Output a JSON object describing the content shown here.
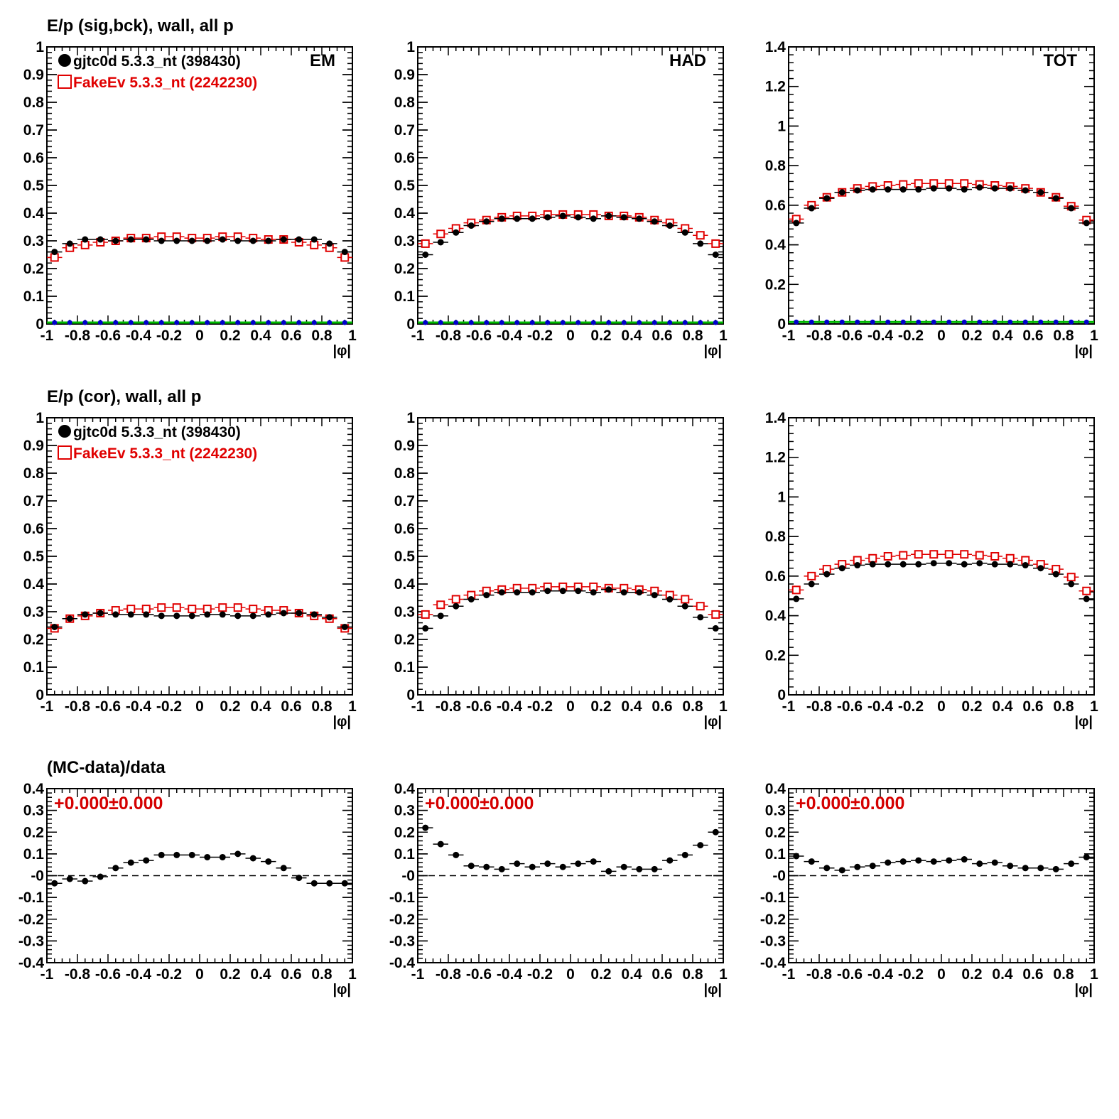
{
  "colors": {
    "data": "#000000",
    "mc": "#e00000",
    "extra_blue": "#0000cc",
    "extra_green": "#00bb00"
  },
  "row_titles": [
    "E/p (sig,bck), wall, all p",
    "E/p (cor), wall, all p",
    "(MC-data)/data"
  ],
  "legend": {
    "data_label": "gjtc0d 5.3.3_nt (398430)",
    "mc_label": "FakeEv 5.3.3_nt (2242230)",
    "data_marker": "filled-circle",
    "mc_marker": "open-square"
  },
  "ratio_text": "+0.000±0.000",
  "chart_data": [
    {
      "type": "scatter",
      "row": 0,
      "col": 0,
      "corner_label": "EM",
      "show_legend": true,
      "xlabel": "|φ|",
      "xlim": [
        -1,
        1
      ],
      "ylim": [
        0,
        1
      ],
      "xticks": [
        -1,
        -0.8,
        -0.6,
        -0.4,
        -0.2,
        0,
        0.2,
        0.4,
        0.6,
        0.8,
        1
      ],
      "yticks": [
        0,
        0.1,
        0.2,
        0.3,
        0.4,
        0.5,
        0.6,
        0.7,
        0.8,
        0.9,
        1
      ],
      "x": [
        -0.95,
        -0.85,
        -0.75,
        -0.65,
        -0.55,
        -0.45,
        -0.35,
        -0.25,
        -0.15,
        -0.05,
        0.05,
        0.15,
        0.25,
        0.35,
        0.45,
        0.55,
        0.65,
        0.75,
        0.85,
        0.95
      ],
      "series": [
        {
          "name": "gjtc0d 5.3.3_nt (398430)",
          "values": [
            0.26,
            0.29,
            0.305,
            0.305,
            0.3,
            0.305,
            0.305,
            0.3,
            0.3,
            0.3,
            0.3,
            0.305,
            0.3,
            0.3,
            0.3,
            0.305,
            0.305,
            0.305,
            0.29,
            0.26
          ]
        },
        {
          "name": "FakeEv 5.3.3_nt (2242230)",
          "values": [
            0.24,
            0.275,
            0.285,
            0.295,
            0.3,
            0.31,
            0.31,
            0.315,
            0.315,
            0.31,
            0.31,
            0.315,
            0.315,
            0.31,
            0.305,
            0.305,
            0.295,
            0.285,
            0.275,
            0.24
          ]
        },
        {
          "values": [
            0.005,
            0.005,
            0.005,
            0.005,
            0.005,
            0.005,
            0.005,
            0.005,
            0.005,
            0.005,
            0.005,
            0.005,
            0.005,
            0.005,
            0.005,
            0.005,
            0.005,
            0.005,
            0.005,
            0.005
          ]
        }
      ]
    },
    {
      "type": "scatter",
      "row": 0,
      "col": 1,
      "corner_label": "HAD",
      "show_legend": false,
      "xlabel": "|φ|",
      "xlim": [
        -1,
        1
      ],
      "ylim": [
        0,
        1
      ],
      "xticks": [
        -1,
        -0.8,
        -0.6,
        -0.4,
        -0.2,
        0,
        0.2,
        0.4,
        0.6,
        0.8,
        1
      ],
      "yticks": [
        0,
        0.1,
        0.2,
        0.3,
        0.4,
        0.5,
        0.6,
        0.7,
        0.8,
        0.9,
        1
      ],
      "x": [
        -0.95,
        -0.85,
        -0.75,
        -0.65,
        -0.55,
        -0.45,
        -0.35,
        -0.25,
        -0.15,
        -0.05,
        0.05,
        0.15,
        0.25,
        0.35,
        0.45,
        0.55,
        0.65,
        0.75,
        0.85,
        0.95
      ],
      "series": [
        {
          "name": "gjtc0d 5.3.3_nt (398430)",
          "values": [
            0.25,
            0.295,
            0.33,
            0.355,
            0.37,
            0.38,
            0.38,
            0.38,
            0.385,
            0.39,
            0.385,
            0.38,
            0.39,
            0.385,
            0.38,
            0.37,
            0.355,
            0.33,
            0.29,
            0.25
          ]
        },
        {
          "name": "FakeEv 5.3.3_nt (2242230)",
          "values": [
            0.29,
            0.325,
            0.345,
            0.365,
            0.375,
            0.385,
            0.39,
            0.39,
            0.395,
            0.395,
            0.395,
            0.395,
            0.39,
            0.39,
            0.385,
            0.375,
            0.365,
            0.345,
            0.32,
            0.29
          ]
        },
        {
          "values": [
            0.005,
            0.005,
            0.005,
            0.005,
            0.005,
            0.005,
            0.005,
            0.005,
            0.005,
            0.005,
            0.005,
            0.005,
            0.005,
            0.005,
            0.005,
            0.005,
            0.005,
            0.005,
            0.005,
            0.005
          ]
        }
      ]
    },
    {
      "type": "scatter",
      "row": 0,
      "col": 2,
      "corner_label": "TOT",
      "show_legend": false,
      "xlabel": "|φ|",
      "xlim": [
        -1,
        1
      ],
      "ylim": [
        0,
        1.4
      ],
      "xticks": [
        -1,
        -0.8,
        -0.6,
        -0.4,
        -0.2,
        0,
        0.2,
        0.4,
        0.6,
        0.8,
        1
      ],
      "yticks": [
        0,
        0.2,
        0.4,
        0.6,
        0.8,
        1,
        1.2,
        1.4
      ],
      "x": [
        -0.95,
        -0.85,
        -0.75,
        -0.65,
        -0.55,
        -0.45,
        -0.35,
        -0.25,
        -0.15,
        -0.05,
        0.05,
        0.15,
        0.25,
        0.35,
        0.45,
        0.55,
        0.65,
        0.75,
        0.85,
        0.95
      ],
      "series": [
        {
          "name": "gjtc0d 5.3.3_nt (398430)",
          "values": [
            0.51,
            0.585,
            0.635,
            0.665,
            0.675,
            0.68,
            0.68,
            0.68,
            0.68,
            0.685,
            0.685,
            0.68,
            0.69,
            0.685,
            0.685,
            0.675,
            0.665,
            0.635,
            0.585,
            0.51
          ]
        },
        {
          "name": "FakeEv 5.3.3_nt (2242230)",
          "values": [
            0.53,
            0.6,
            0.64,
            0.665,
            0.685,
            0.695,
            0.7,
            0.705,
            0.71,
            0.71,
            0.71,
            0.71,
            0.705,
            0.7,
            0.695,
            0.685,
            0.665,
            0.64,
            0.595,
            0.525
          ]
        },
        {
          "values": [
            0.01,
            0.01,
            0.01,
            0.01,
            0.01,
            0.01,
            0.01,
            0.01,
            0.01,
            0.01,
            0.01,
            0.01,
            0.01,
            0.01,
            0.01,
            0.01,
            0.01,
            0.01,
            0.01,
            0.01
          ]
        }
      ]
    },
    {
      "type": "scatter",
      "row": 1,
      "col": 0,
      "corner_label": "",
      "show_legend": true,
      "xlabel": "|φ|",
      "xlim": [
        -1,
        1
      ],
      "ylim": [
        0,
        1
      ],
      "xticks": [
        -1,
        -0.8,
        -0.6,
        -0.4,
        -0.2,
        0,
        0.2,
        0.4,
        0.6,
        0.8,
        1
      ],
      "yticks": [
        0,
        0.1,
        0.2,
        0.3,
        0.4,
        0.5,
        0.6,
        0.7,
        0.8,
        0.9,
        1
      ],
      "x": [
        -0.95,
        -0.85,
        -0.75,
        -0.65,
        -0.55,
        -0.45,
        -0.35,
        -0.25,
        -0.15,
        -0.05,
        0.05,
        0.15,
        0.25,
        0.35,
        0.45,
        0.55,
        0.65,
        0.75,
        0.85,
        0.95
      ],
      "series": [
        {
          "name": "gjtc0d 5.3.3_nt (398430)",
          "values": [
            0.245,
            0.275,
            0.29,
            0.295,
            0.29,
            0.29,
            0.29,
            0.285,
            0.285,
            0.285,
            0.29,
            0.29,
            0.285,
            0.285,
            0.29,
            0.295,
            0.295,
            0.29,
            0.28,
            0.245
          ]
        },
        {
          "name": "FakeEv 5.3.3_nt (2242230)",
          "values": [
            0.24,
            0.275,
            0.285,
            0.295,
            0.305,
            0.31,
            0.31,
            0.315,
            0.315,
            0.31,
            0.31,
            0.315,
            0.315,
            0.31,
            0.305,
            0.305,
            0.295,
            0.285,
            0.275,
            0.24
          ]
        }
      ]
    },
    {
      "type": "scatter",
      "row": 1,
      "col": 1,
      "corner_label": "",
      "show_legend": false,
      "xlabel": "|φ|",
      "xlim": [
        -1,
        1
      ],
      "ylim": [
        0,
        1
      ],
      "xticks": [
        -1,
        -0.8,
        -0.6,
        -0.4,
        -0.2,
        0,
        0.2,
        0.4,
        0.6,
        0.8,
        1
      ],
      "yticks": [
        0,
        0.1,
        0.2,
        0.3,
        0.4,
        0.5,
        0.6,
        0.7,
        0.8,
        0.9,
        1
      ],
      "x": [
        -0.95,
        -0.85,
        -0.75,
        -0.65,
        -0.55,
        -0.45,
        -0.35,
        -0.25,
        -0.15,
        -0.05,
        0.05,
        0.15,
        0.25,
        0.35,
        0.45,
        0.55,
        0.65,
        0.75,
        0.85,
        0.95
      ],
      "series": [
        {
          "name": "gjtc0d 5.3.3_nt (398430)",
          "values": [
            0.24,
            0.285,
            0.32,
            0.345,
            0.36,
            0.37,
            0.37,
            0.37,
            0.375,
            0.375,
            0.375,
            0.37,
            0.38,
            0.37,
            0.37,
            0.36,
            0.345,
            0.32,
            0.28,
            0.24
          ]
        },
        {
          "name": "FakeEv 5.3.3_nt (2242230)",
          "values": [
            0.29,
            0.325,
            0.345,
            0.36,
            0.375,
            0.38,
            0.385,
            0.385,
            0.39,
            0.39,
            0.39,
            0.39,
            0.385,
            0.385,
            0.38,
            0.375,
            0.36,
            0.345,
            0.32,
            0.29
          ]
        }
      ]
    },
    {
      "type": "scatter",
      "row": 1,
      "col": 2,
      "corner_label": "",
      "show_legend": false,
      "xlabel": "|φ|",
      "xlim": [
        -1,
        1
      ],
      "ylim": [
        0,
        1.4
      ],
      "xticks": [
        -1,
        -0.8,
        -0.6,
        -0.4,
        -0.2,
        0,
        0.2,
        0.4,
        0.6,
        0.8,
        1
      ],
      "yticks": [
        0,
        0.2,
        0.4,
        0.6,
        0.8,
        1,
        1.2,
        1.4
      ],
      "x": [
        -0.95,
        -0.85,
        -0.75,
        -0.65,
        -0.55,
        -0.45,
        -0.35,
        -0.25,
        -0.15,
        -0.05,
        0.05,
        0.15,
        0.25,
        0.35,
        0.45,
        0.55,
        0.65,
        0.75,
        0.85,
        0.95
      ],
      "series": [
        {
          "name": "gjtc0d 5.3.3_nt (398430)",
          "values": [
            0.485,
            0.56,
            0.61,
            0.64,
            0.655,
            0.66,
            0.66,
            0.66,
            0.66,
            0.665,
            0.665,
            0.66,
            0.665,
            0.66,
            0.66,
            0.655,
            0.64,
            0.61,
            0.56,
            0.485
          ]
        },
        {
          "name": "FakeEv 5.3.3_nt (2242230)",
          "values": [
            0.53,
            0.6,
            0.635,
            0.66,
            0.68,
            0.69,
            0.7,
            0.705,
            0.71,
            0.71,
            0.71,
            0.71,
            0.705,
            0.7,
            0.69,
            0.68,
            0.66,
            0.635,
            0.595,
            0.525
          ]
        }
      ]
    },
    {
      "type": "scatter",
      "row": 2,
      "col": 0,
      "corner_label": "",
      "show_legend": false,
      "reference_line": 0,
      "xlabel": "|φ|",
      "xlim": [
        -1,
        1
      ],
      "ylim": [
        -0.4,
        0.4
      ],
      "xticks": [
        -1,
        -0.8,
        -0.6,
        -0.4,
        -0.2,
        0,
        0.2,
        0.4,
        0.6,
        0.8,
        1
      ],
      "yticks": [
        -0.4,
        -0.3,
        -0.2,
        -0.1,
        0,
        0.1,
        0.2,
        0.3,
        0.4
      ],
      "ytick_labels": [
        "-0.4",
        "-0.3",
        "-0.2",
        "-0.1",
        "-0",
        "0.1",
        "0.2",
        "0.3",
        "0.4"
      ],
      "x": [
        -0.95,
        -0.85,
        -0.75,
        -0.65,
        -0.55,
        -0.45,
        -0.35,
        -0.25,
        -0.15,
        -0.05,
        0.05,
        0.15,
        0.25,
        0.35,
        0.45,
        0.55,
        0.65,
        0.75,
        0.85,
        0.95
      ],
      "series": [
        {
          "values": [
            -0.035,
            -0.015,
            -0.025,
            -0.005,
            0.035,
            0.06,
            0.07,
            0.095,
            0.095,
            0.095,
            0.085,
            0.085,
            0.1,
            0.08,
            0.065,
            0.035,
            -0.01,
            -0.035,
            -0.035,
            -0.035
          ]
        }
      ]
    },
    {
      "type": "scatter",
      "row": 2,
      "col": 1,
      "corner_label": "",
      "show_legend": false,
      "reference_line": 0,
      "xlabel": "|φ|",
      "xlim": [
        -1,
        1
      ],
      "ylim": [
        -0.4,
        0.4
      ],
      "xticks": [
        -1,
        -0.8,
        -0.6,
        -0.4,
        -0.2,
        0,
        0.2,
        0.4,
        0.6,
        0.8,
        1
      ],
      "yticks": [
        -0.4,
        -0.3,
        -0.2,
        -0.1,
        0,
        0.1,
        0.2,
        0.3,
        0.4
      ],
      "ytick_labels": [
        "-0.4",
        "-0.3",
        "-0.2",
        "-0.1",
        "-0",
        "0.1",
        "0.2",
        "0.3",
        "0.4"
      ],
      "x": [
        -0.95,
        -0.85,
        -0.75,
        -0.65,
        -0.55,
        -0.45,
        -0.35,
        -0.25,
        -0.15,
        -0.05,
        0.05,
        0.15,
        0.25,
        0.35,
        0.45,
        0.55,
        0.65,
        0.75,
        0.85,
        0.95
      ],
      "series": [
        {
          "values": [
            0.22,
            0.145,
            0.095,
            0.045,
            0.04,
            0.03,
            0.055,
            0.04,
            0.055,
            0.04,
            0.055,
            0.065,
            0.02,
            0.04,
            0.03,
            0.03,
            0.07,
            0.095,
            0.14,
            0.2
          ]
        }
      ]
    },
    {
      "type": "scatter",
      "row": 2,
      "col": 2,
      "corner_label": "",
      "show_legend": false,
      "reference_line": 0,
      "xlabel": "|φ|",
      "xlim": [
        -1,
        1
      ],
      "ylim": [
        -0.4,
        0.4
      ],
      "xticks": [
        -1,
        -0.8,
        -0.6,
        -0.4,
        -0.2,
        0,
        0.2,
        0.4,
        0.6,
        0.8,
        1
      ],
      "yticks": [
        -0.4,
        -0.3,
        -0.2,
        -0.1,
        0,
        0.1,
        0.2,
        0.3,
        0.4
      ],
      "ytick_labels": [
        "-0.4",
        "-0.3",
        "-0.2",
        "-0.1",
        "-0",
        "0.1",
        "0.2",
        "0.3",
        "0.4"
      ],
      "x": [
        -0.95,
        -0.85,
        -0.75,
        -0.65,
        -0.55,
        -0.45,
        -0.35,
        -0.25,
        -0.15,
        -0.05,
        0.05,
        0.15,
        0.25,
        0.35,
        0.45,
        0.55,
        0.65,
        0.75,
        0.85,
        0.95
      ],
      "series": [
        {
          "values": [
            0.09,
            0.065,
            0.035,
            0.025,
            0.04,
            0.045,
            0.06,
            0.065,
            0.07,
            0.065,
            0.07,
            0.075,
            0.055,
            0.06,
            0.045,
            0.035,
            0.035,
            0.03,
            0.055,
            0.085
          ]
        }
      ]
    }
  ]
}
